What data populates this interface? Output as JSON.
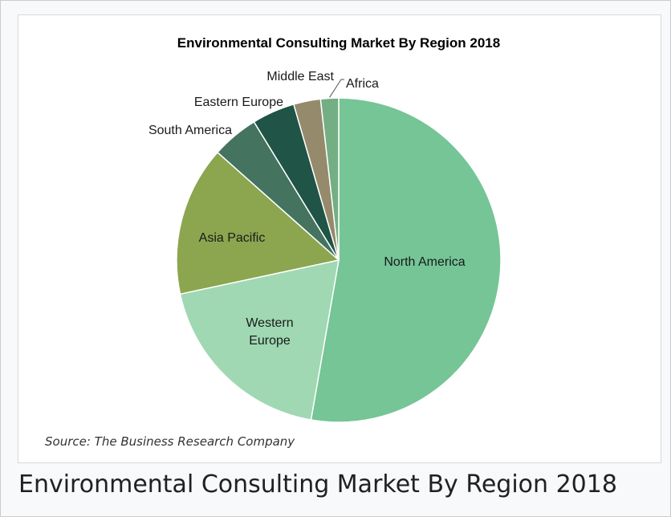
{
  "caption": "Environmental Consulting Market By Region 2018",
  "chart_data": {
    "type": "pie",
    "title": "Environmental Consulting Market By Region 2018",
    "source": "Source: The Business Research Company",
    "slices": [
      {
        "label": "North America",
        "value": 53.0,
        "color": "#75c596"
      },
      {
        "label": "Western Europe",
        "value": 19.0,
        "color": "#9fd8b2"
      },
      {
        "label": "Asia Pacific",
        "value": 15.0,
        "color": "#8ba64f"
      },
      {
        "label": "South America",
        "value": 4.7,
        "color": "#44735f"
      },
      {
        "label": "Eastern Europe",
        "value": 4.3,
        "color": "#1f5447"
      },
      {
        "label": "Middle East",
        "value": 2.7,
        "color": "#958a6b"
      },
      {
        "label": "Africa",
        "value": 1.8,
        "color": "#74ae83"
      }
    ]
  }
}
